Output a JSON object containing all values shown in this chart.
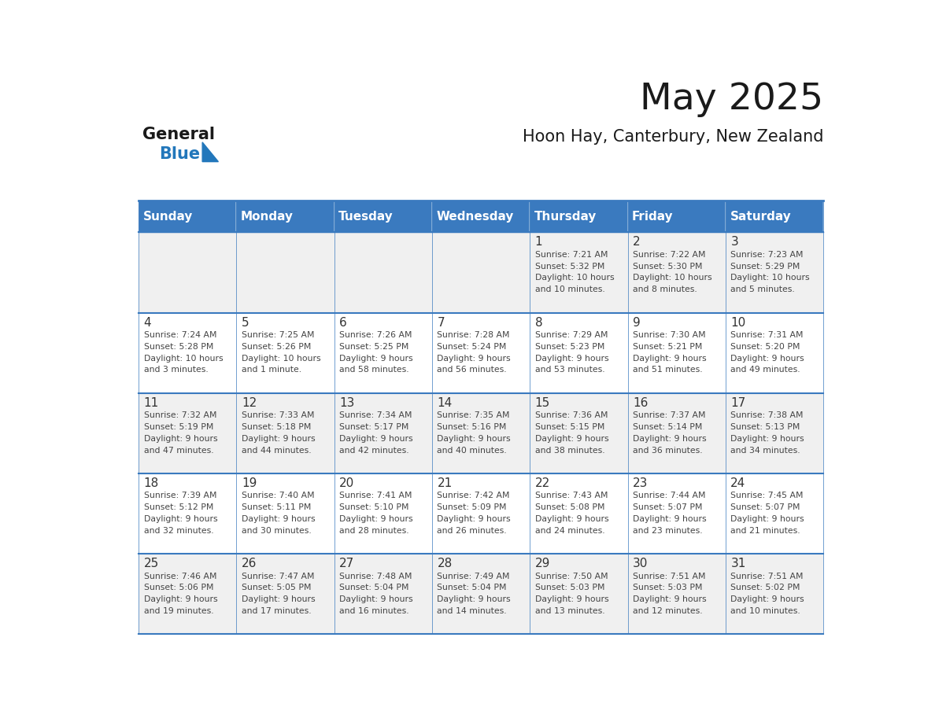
{
  "title": "May 2025",
  "subtitle": "Hoon Hay, Canterbury, New Zealand",
  "header_bg_color": "#3a7abf",
  "header_text_color": "#ffffff",
  "day_names": [
    "Sunday",
    "Monday",
    "Tuesday",
    "Wednesday",
    "Thursday",
    "Friday",
    "Saturday"
  ],
  "row_bg_even": "#f0f0f0",
  "row_bg_odd": "#ffffff",
  "cell_text_color": "#444444",
  "day_num_color": "#333333",
  "grid_color": "#3a7abf",
  "calendar": [
    [
      {
        "day": "",
        "sunrise": "",
        "sunset": "",
        "daylight": ""
      },
      {
        "day": "",
        "sunrise": "",
        "sunset": "",
        "daylight": ""
      },
      {
        "day": "",
        "sunrise": "",
        "sunset": "",
        "daylight": ""
      },
      {
        "day": "",
        "sunrise": "",
        "sunset": "",
        "daylight": ""
      },
      {
        "day": "1",
        "sunrise": "7:21 AM",
        "sunset": "5:32 PM",
        "daylight": "10 hours and 10 minutes."
      },
      {
        "day": "2",
        "sunrise": "7:22 AM",
        "sunset": "5:30 PM",
        "daylight": "10 hours and 8 minutes."
      },
      {
        "day": "3",
        "sunrise": "7:23 AM",
        "sunset": "5:29 PM",
        "daylight": "10 hours and 5 minutes."
      }
    ],
    [
      {
        "day": "4",
        "sunrise": "7:24 AM",
        "sunset": "5:28 PM",
        "daylight": "10 hours and 3 minutes."
      },
      {
        "day": "5",
        "sunrise": "7:25 AM",
        "sunset": "5:26 PM",
        "daylight": "10 hours and 1 minute."
      },
      {
        "day": "6",
        "sunrise": "7:26 AM",
        "sunset": "5:25 PM",
        "daylight": "9 hours and 58 minutes."
      },
      {
        "day": "7",
        "sunrise": "7:28 AM",
        "sunset": "5:24 PM",
        "daylight": "9 hours and 56 minutes."
      },
      {
        "day": "8",
        "sunrise": "7:29 AM",
        "sunset": "5:23 PM",
        "daylight": "9 hours and 53 minutes."
      },
      {
        "day": "9",
        "sunrise": "7:30 AM",
        "sunset": "5:21 PM",
        "daylight": "9 hours and 51 minutes."
      },
      {
        "day": "10",
        "sunrise": "7:31 AM",
        "sunset": "5:20 PM",
        "daylight": "9 hours and 49 minutes."
      }
    ],
    [
      {
        "day": "11",
        "sunrise": "7:32 AM",
        "sunset": "5:19 PM",
        "daylight": "9 hours and 47 minutes."
      },
      {
        "day": "12",
        "sunrise": "7:33 AM",
        "sunset": "5:18 PM",
        "daylight": "9 hours and 44 minutes."
      },
      {
        "day": "13",
        "sunrise": "7:34 AM",
        "sunset": "5:17 PM",
        "daylight": "9 hours and 42 minutes."
      },
      {
        "day": "14",
        "sunrise": "7:35 AM",
        "sunset": "5:16 PM",
        "daylight": "9 hours and 40 minutes."
      },
      {
        "day": "15",
        "sunrise": "7:36 AM",
        "sunset": "5:15 PM",
        "daylight": "9 hours and 38 minutes."
      },
      {
        "day": "16",
        "sunrise": "7:37 AM",
        "sunset": "5:14 PM",
        "daylight": "9 hours and 36 minutes."
      },
      {
        "day": "17",
        "sunrise": "7:38 AM",
        "sunset": "5:13 PM",
        "daylight": "9 hours and 34 minutes."
      }
    ],
    [
      {
        "day": "18",
        "sunrise": "7:39 AM",
        "sunset": "5:12 PM",
        "daylight": "9 hours and 32 minutes."
      },
      {
        "day": "19",
        "sunrise": "7:40 AM",
        "sunset": "5:11 PM",
        "daylight": "9 hours and 30 minutes."
      },
      {
        "day": "20",
        "sunrise": "7:41 AM",
        "sunset": "5:10 PM",
        "daylight": "9 hours and 28 minutes."
      },
      {
        "day": "21",
        "sunrise": "7:42 AM",
        "sunset": "5:09 PM",
        "daylight": "9 hours and 26 minutes."
      },
      {
        "day": "22",
        "sunrise": "7:43 AM",
        "sunset": "5:08 PM",
        "daylight": "9 hours and 24 minutes."
      },
      {
        "day": "23",
        "sunrise": "7:44 AM",
        "sunset": "5:07 PM",
        "daylight": "9 hours and 23 minutes."
      },
      {
        "day": "24",
        "sunrise": "7:45 AM",
        "sunset": "5:07 PM",
        "daylight": "9 hours and 21 minutes."
      }
    ],
    [
      {
        "day": "25",
        "sunrise": "7:46 AM",
        "sunset": "5:06 PM",
        "daylight": "9 hours and 19 minutes."
      },
      {
        "day": "26",
        "sunrise": "7:47 AM",
        "sunset": "5:05 PM",
        "daylight": "9 hours and 17 minutes."
      },
      {
        "day": "27",
        "sunrise": "7:48 AM",
        "sunset": "5:04 PM",
        "daylight": "9 hours and 16 minutes."
      },
      {
        "day": "28",
        "sunrise": "7:49 AM",
        "sunset": "5:04 PM",
        "daylight": "9 hours and 14 minutes."
      },
      {
        "day": "29",
        "sunrise": "7:50 AM",
        "sunset": "5:03 PM",
        "daylight": "9 hours and 13 minutes."
      },
      {
        "day": "30",
        "sunrise": "7:51 AM",
        "sunset": "5:03 PM",
        "daylight": "9 hours and 12 minutes."
      },
      {
        "day": "31",
        "sunrise": "7:51 AM",
        "sunset": "5:02 PM",
        "daylight": "9 hours and 10 minutes."
      }
    ]
  ],
  "logo_general_color": "#1a1a1a",
  "logo_blue_color": "#2277bb",
  "logo_triangle_color": "#2277bb",
  "title_color": "#1a1a1a",
  "subtitle_color": "#1a1a1a"
}
